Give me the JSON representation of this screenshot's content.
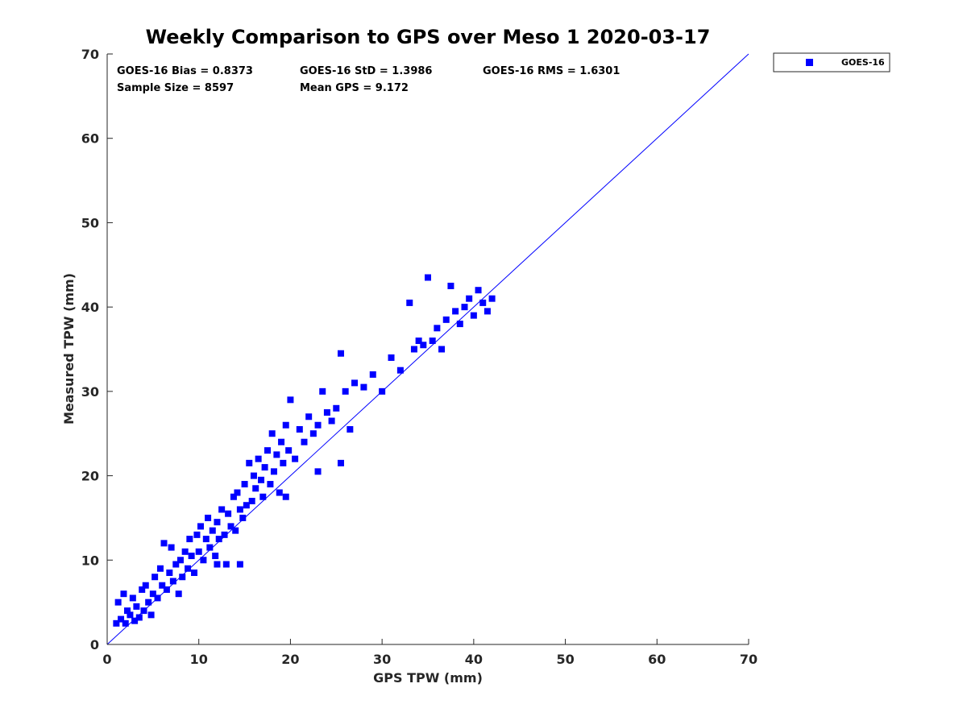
{
  "chart_data": {
    "type": "scatter",
    "title": "Weekly Comparison to GPS over Meso 1 2020-03-17",
    "xlabel": "GPS TPW (mm)",
    "ylabel": "Measured TPW (mm)",
    "xlim": [
      0,
      70
    ],
    "ylim": [
      0,
      70
    ],
    "xticks": [
      "0",
      "10",
      "20",
      "30",
      "40",
      "50",
      "60",
      "70"
    ],
    "yticks": [
      "0",
      "10",
      "20",
      "30",
      "40",
      "50",
      "60",
      "70"
    ],
    "grid": false,
    "legend": {
      "position": "outside-top-right",
      "entries": [
        "GOES-16"
      ]
    },
    "reference_line": {
      "from": [
        0,
        0
      ],
      "to": [
        70,
        70
      ],
      "color": "#0000ff"
    },
    "stats": {
      "bias": "GOES-16 Bias = 0.8373",
      "std": "GOES-16 StD = 1.3986",
      "rms": "GOES-16 RMS = 1.6301",
      "sample": "Sample Size = 8597",
      "mean": "Mean GPS = 9.172"
    },
    "series": [
      {
        "name": "GOES-16",
        "color": "#0000ff",
        "marker": "square",
        "points": [
          [
            1.0,
            2.5
          ],
          [
            1.2,
            5.0
          ],
          [
            1.5,
            3.0
          ],
          [
            1.8,
            6.0
          ],
          [
            2.0,
            2.5
          ],
          [
            2.2,
            4.0
          ],
          [
            2.5,
            3.5
          ],
          [
            2.8,
            5.5
          ],
          [
            3.0,
            2.8
          ],
          [
            3.2,
            4.5
          ],
          [
            3.5,
            3.2
          ],
          [
            3.8,
            6.5
          ],
          [
            4.0,
            4.0
          ],
          [
            4.2,
            7.0
          ],
          [
            4.5,
            5.0
          ],
          [
            4.8,
            3.5
          ],
          [
            5.0,
            6.0
          ],
          [
            5.2,
            8.0
          ],
          [
            5.5,
            5.5
          ],
          [
            5.8,
            9.0
          ],
          [
            6.0,
            7.0
          ],
          [
            6.2,
            12.0
          ],
          [
            6.5,
            6.5
          ],
          [
            6.8,
            8.5
          ],
          [
            7.0,
            11.5
          ],
          [
            7.2,
            7.5
          ],
          [
            7.5,
            9.5
          ],
          [
            7.8,
            6.0
          ],
          [
            8.0,
            10.0
          ],
          [
            8.2,
            8.0
          ],
          [
            8.5,
            11.0
          ],
          [
            8.8,
            9.0
          ],
          [
            9.0,
            12.5
          ],
          [
            9.2,
            10.5
          ],
          [
            9.5,
            8.5
          ],
          [
            9.8,
            13.0
          ],
          [
            10.0,
            11.0
          ],
          [
            10.2,
            14.0
          ],
          [
            10.5,
            10.0
          ],
          [
            10.8,
            12.5
          ],
          [
            11.0,
            15.0
          ],
          [
            11.2,
            11.5
          ],
          [
            11.5,
            13.5
          ],
          [
            11.8,
            10.5
          ],
          [
            12.0,
            14.5
          ],
          [
            12.2,
            12.5
          ],
          [
            12.5,
            16.0
          ],
          [
            12.8,
            13.0
          ],
          [
            13.0,
            9.5
          ],
          [
            13.2,
            15.5
          ],
          [
            13.5,
            14.0
          ],
          [
            13.8,
            17.5
          ],
          [
            14.0,
            13.5
          ],
          [
            14.2,
            18.0
          ],
          [
            14.5,
            16.0
          ],
          [
            14.8,
            15.0
          ],
          [
            15.0,
            19.0
          ],
          [
            15.2,
            16.5
          ],
          [
            15.5,
            21.5
          ],
          [
            15.8,
            17.0
          ],
          [
            16.0,
            20.0
          ],
          [
            16.2,
            18.5
          ],
          [
            16.5,
            22.0
          ],
          [
            16.8,
            19.5
          ],
          [
            17.0,
            17.5
          ],
          [
            17.2,
            21.0
          ],
          [
            17.5,
            23.0
          ],
          [
            17.8,
            19.0
          ],
          [
            18.0,
            25.0
          ],
          [
            18.2,
            20.5
          ],
          [
            18.5,
            22.5
          ],
          [
            18.8,
            18.0
          ],
          [
            19.0,
            24.0
          ],
          [
            19.2,
            21.5
          ],
          [
            19.5,
            26.0
          ],
          [
            19.8,
            23.0
          ],
          [
            20.0,
            29.0
          ],
          [
            20.5,
            22.0
          ],
          [
            21.0,
            25.5
          ],
          [
            21.5,
            24.0
          ],
          [
            22.0,
            27.0
          ],
          [
            22.5,
            25.0
          ],
          [
            23.0,
            26.0
          ],
          [
            23.5,
            30.0
          ],
          [
            24.0,
            27.5
          ],
          [
            24.5,
            26.5
          ],
          [
            25.0,
            28.0
          ],
          [
            25.5,
            34.5
          ],
          [
            26.0,
            30.0
          ],
          [
            26.5,
            25.5
          ],
          [
            27.0,
            31.0
          ],
          [
            28.0,
            30.5
          ],
          [
            29.0,
            32.0
          ],
          [
            30.0,
            30.0
          ],
          [
            31.0,
            34.0
          ],
          [
            32.0,
            32.5
          ],
          [
            33.0,
            40.5
          ],
          [
            33.5,
            35.0
          ],
          [
            34.0,
            36.0
          ],
          [
            34.5,
            35.5
          ],
          [
            35.0,
            43.5
          ],
          [
            35.5,
            36.0
          ],
          [
            36.0,
            37.5
          ],
          [
            36.5,
            35.0
          ],
          [
            37.0,
            38.5
          ],
          [
            37.5,
            42.5
          ],
          [
            38.0,
            39.5
          ],
          [
            38.5,
            38.0
          ],
          [
            39.0,
            40.0
          ],
          [
            39.5,
            41.0
          ],
          [
            40.0,
            39.0
          ],
          [
            40.5,
            42.0
          ],
          [
            41.0,
            40.5
          ],
          [
            41.5,
            39.5
          ],
          [
            42.0,
            41.0
          ],
          [
            25.5,
            21.5
          ],
          [
            23.0,
            20.5
          ],
          [
            19.5,
            17.5
          ],
          [
            14.5,
            9.5
          ],
          [
            12.0,
            9.5
          ]
        ]
      }
    ]
  }
}
